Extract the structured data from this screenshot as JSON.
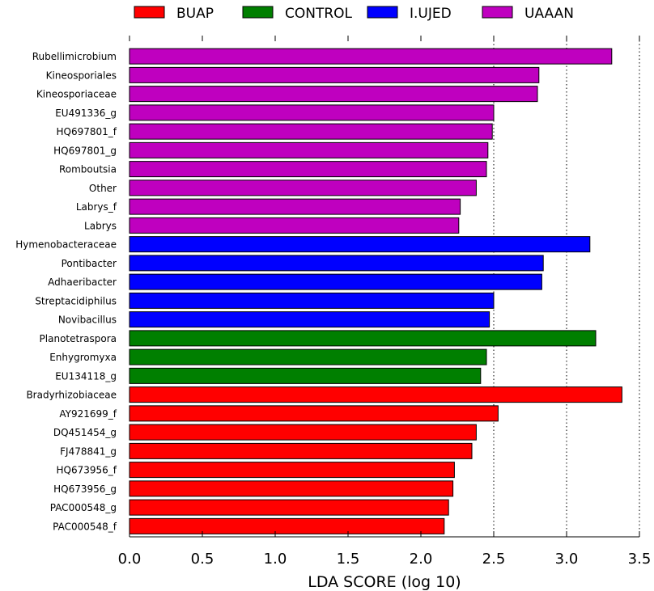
{
  "chart_data": {
    "type": "bar",
    "orientation": "horizontal",
    "xlabel": "LDA SCORE (log 10)",
    "xlim": [
      0,
      3.5
    ],
    "xticks": [
      "0.0",
      "0.5",
      "1.0",
      "1.5",
      "2.0",
      "2.5",
      "3.0",
      "3.5"
    ],
    "grid": "vertical dotted at 2.5, 3.0, 3.5",
    "legend_position": "top",
    "legend": [
      {
        "name": "BUAP",
        "color": "#ff0000"
      },
      {
        "name": "CONTROL",
        "color": "#007f00"
      },
      {
        "name": "I.UJED",
        "color": "#0000ff"
      },
      {
        "name": "UAAAN",
        "color": "#bf00bf"
      }
    ],
    "bars": [
      {
        "label": "Rubellimicrobium",
        "value": 3.31,
        "group": "UAAAN"
      },
      {
        "label": "Kineosporiales",
        "value": 2.81,
        "group": "UAAAN"
      },
      {
        "label": "Kineosporiaceae",
        "value": 2.8,
        "group": "UAAAN"
      },
      {
        "label": "EU491336_g",
        "value": 2.5,
        "group": "UAAAN"
      },
      {
        "label": "HQ697801_f",
        "value": 2.49,
        "group": "UAAAN"
      },
      {
        "label": "HQ697801_g",
        "value": 2.46,
        "group": "UAAAN"
      },
      {
        "label": "Romboutsia",
        "value": 2.45,
        "group": "UAAAN"
      },
      {
        "label": "Other",
        "value": 2.38,
        "group": "UAAAN"
      },
      {
        "label": "Labrys_f",
        "value": 2.27,
        "group": "UAAAN"
      },
      {
        "label": "Labrys",
        "value": 2.26,
        "group": "UAAAN"
      },
      {
        "label": "Hymenobacteraceae",
        "value": 3.16,
        "group": "I.UJED"
      },
      {
        "label": "Pontibacter",
        "value": 2.84,
        "group": "I.UJED"
      },
      {
        "label": "Adhaeribacter",
        "value": 2.83,
        "group": "I.UJED"
      },
      {
        "label": "Streptacidiphilus",
        "value": 2.5,
        "group": "I.UJED"
      },
      {
        "label": "Novibacillus",
        "value": 2.47,
        "group": "I.UJED"
      },
      {
        "label": "Planotetraspora",
        "value": 3.2,
        "group": "CONTROL"
      },
      {
        "label": "Enhygromyxa",
        "value": 2.45,
        "group": "CONTROL"
      },
      {
        "label": "EU134118_g",
        "value": 2.41,
        "group": "CONTROL"
      },
      {
        "label": "Bradyrhizobiaceae",
        "value": 3.38,
        "group": "BUAP"
      },
      {
        "label": "AY921699_f",
        "value": 2.53,
        "group": "BUAP"
      },
      {
        "label": "DQ451454_g",
        "value": 2.38,
        "group": "BUAP"
      },
      {
        "label": "FJ478841_g",
        "value": 2.35,
        "group": "BUAP"
      },
      {
        "label": "HQ673956_f",
        "value": 2.23,
        "group": "BUAP"
      },
      {
        "label": "HQ673956_g",
        "value": 2.22,
        "group": "BUAP"
      },
      {
        "label": "PAC000548_g",
        "value": 2.19,
        "group": "BUAP"
      },
      {
        "label": "PAC000548_f",
        "value": 2.16,
        "group": "BUAP"
      }
    ]
  }
}
